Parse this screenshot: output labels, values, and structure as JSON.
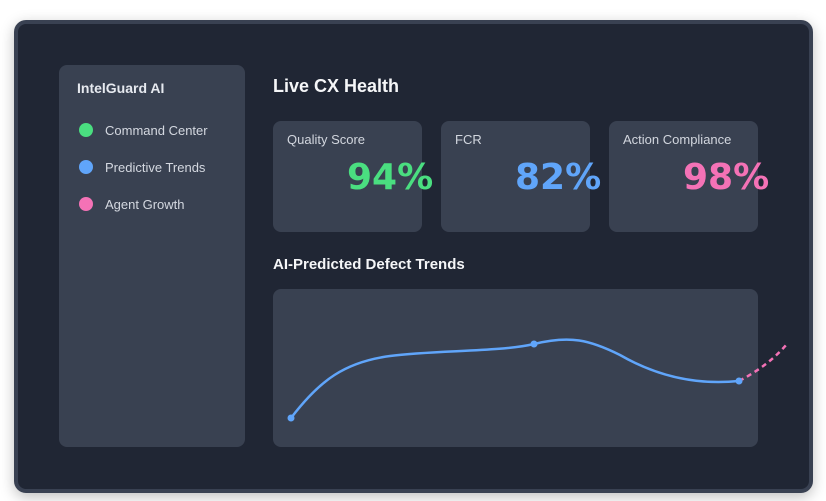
{
  "sidebar": {
    "brand": "IntelGuard AI",
    "items": [
      {
        "label": "Command Center",
        "color": "#4ade80"
      },
      {
        "label": "Predictive Trends",
        "color": "#60a5fa"
      },
      {
        "label": "Agent Growth",
        "color": "#f472b6"
      }
    ]
  },
  "main": {
    "title": "Live CX Health",
    "cards": [
      {
        "label": "Quality Score",
        "value": "94%",
        "color": "#4ade80"
      },
      {
        "label": "FCR",
        "value": "82%",
        "color": "#60a5fa"
      },
      {
        "label": "Action Compliance",
        "value": "98%",
        "color": "#f472b6"
      }
    ],
    "chart_title": "AI-Predicted Defect Trends"
  },
  "chart_data": {
    "type": "line",
    "series": [
      {
        "color": "#60a5fa",
        "style": "solid",
        "values": [
          0.12,
          0.55,
          0.6,
          0.66,
          0.34,
          0.41
        ]
      },
      {
        "color": "#f472b6",
        "style": "dashed",
        "values": [
          0.41,
          0.65
        ]
      }
    ]
  }
}
